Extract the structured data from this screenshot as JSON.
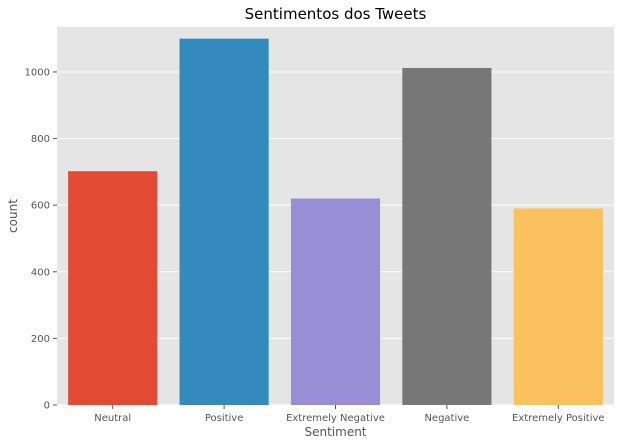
{
  "chart_data": {
    "type": "bar",
    "title": "Sentimentos dos Tweets",
    "xlabel": "Sentiment",
    "ylabel": "count",
    "categories": [
      "Neutral",
      "Positive",
      "Extremely Negative",
      "Negative",
      "Extremely Positive"
    ],
    "values": [
      702,
      1100,
      620,
      1012,
      590
    ],
    "colors": [
      "#E24A33",
      "#348ABD",
      "#988ED5",
      "#777777",
      "#FBC15E"
    ],
    "ylim": [
      0,
      1135
    ],
    "yticks": [
      0,
      200,
      400,
      600,
      800,
      1000
    ],
    "grid": true,
    "background": "#E5E5E5",
    "grid_color": "#FFFFFF"
  }
}
